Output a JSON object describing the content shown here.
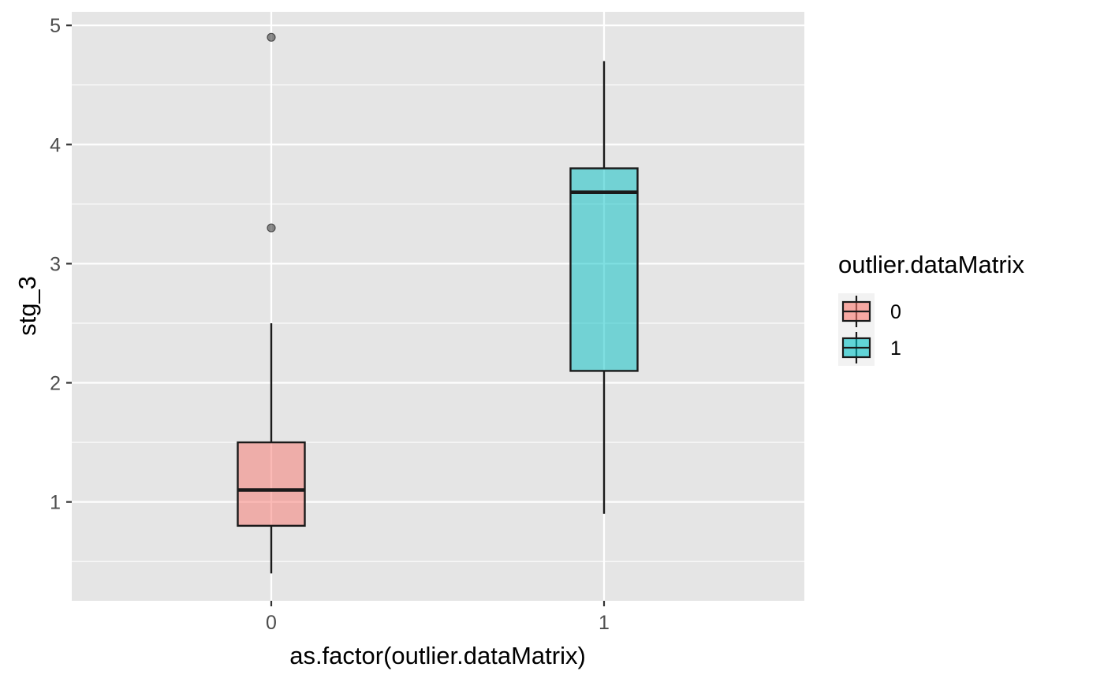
{
  "chart_data": {
    "type": "boxplot",
    "title": "",
    "xlabel": "as.factor(outlier.dataMatrix)",
    "ylabel": "stg_3",
    "categories": [
      "0",
      "1"
    ],
    "ylim": [
      0.3,
      5.15
    ],
    "y_ticks": [
      1,
      2,
      3,
      4,
      5
    ],
    "y_minor_ticks": [
      0.5,
      1.5,
      2.5,
      3.5,
      4.5
    ],
    "grid": true,
    "boxes": [
      {
        "category": "0",
        "whisker_low": 0.4,
        "q1": 0.8,
        "median": 1.1,
        "q3": 1.5,
        "whisker_high": 2.5,
        "outliers": [
          3.3,
          4.9
        ],
        "color": "#F8766D"
      },
      {
        "category": "1",
        "whisker_low": 0.9,
        "q1": 2.1,
        "median": 3.6,
        "q3": 3.8,
        "whisker_high": 4.7,
        "outliers": [],
        "color": "#00BFC4"
      }
    ],
    "legend": {
      "title": "outlier.dataMatrix",
      "position": "right",
      "entries": [
        {
          "label": "0",
          "color": "#F8766D"
        },
        {
          "label": "1",
          "color": "#00BFC4"
        }
      ]
    },
    "colors": {
      "panel_background": "#E5E5E5",
      "grid_line": "#FFFFFF",
      "box_outline": "#1A1A1A",
      "outlier_point": "#333333",
      "tick_text": "#4D4D4D"
    }
  }
}
